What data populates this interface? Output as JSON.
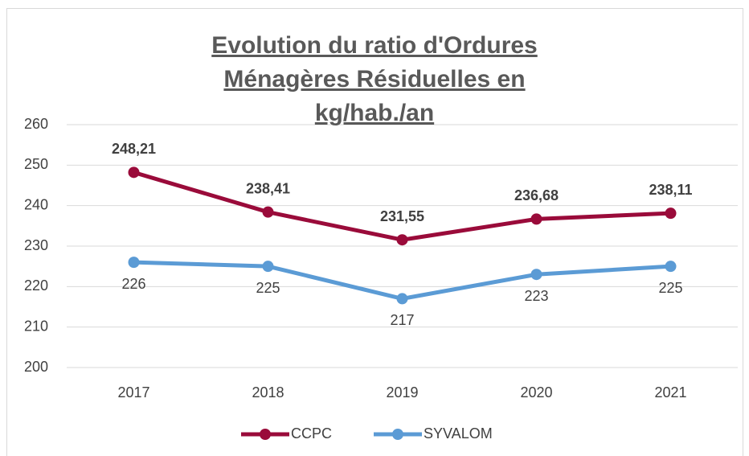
{
  "chart_data": {
    "type": "line",
    "title": "Evolution du ratio d'Ordures Ménagères Résiduelles en kg/hab./an",
    "categories": [
      "2017",
      "2018",
      "2019",
      "2020",
      "2021"
    ],
    "series": [
      {
        "name": "CCPC",
        "color": "#9a0b3a",
        "values": [
          248.21,
          238.41,
          231.55,
          236.68,
          238.11
        ],
        "value_labels": [
          "248,21",
          "238,41",
          "231,55",
          "236,68",
          "238,11"
        ]
      },
      {
        "name": "SYVALOM",
        "color": "#5b9bd5",
        "values": [
          226,
          225,
          217,
          223,
          225
        ]
      }
    ],
    "ylim": [
      200,
      260
    ],
    "yticks": [
      200,
      210,
      220,
      230,
      240,
      250,
      260
    ],
    "grid": true,
    "legend": "bottom"
  }
}
